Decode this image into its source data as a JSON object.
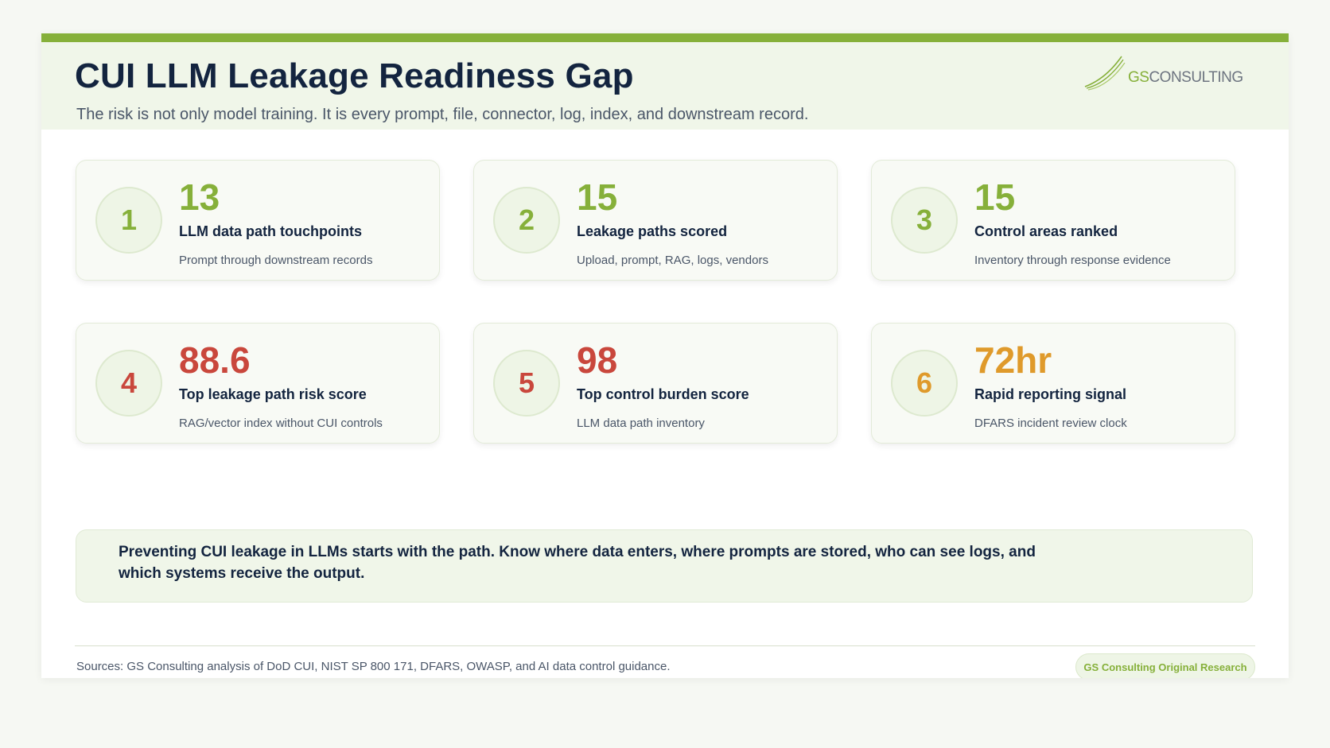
{
  "header": {
    "title": "CUI LLM Leakage Readiness Gap",
    "subtitle": "The risk is not only model training. It is every prompt, file, connector, log, index, and downstream record."
  },
  "logo": {
    "gs": "GS",
    "name": "CONSULTING"
  },
  "cards": [
    {
      "number": "1",
      "value": "13",
      "label": "LLM data path touchpoints",
      "desc": "Prompt through downstream records",
      "color": "#86b03a"
    },
    {
      "number": "2",
      "value": "15",
      "label": "Leakage paths scored",
      "desc": "Upload, prompt, RAG, logs, vendors",
      "color": "#86b03a"
    },
    {
      "number": "3",
      "value": "15",
      "label": "Control areas ranked",
      "desc": "Inventory through response evidence",
      "color": "#86b03a"
    },
    {
      "number": "4",
      "value": "88.6",
      "label": "Top leakage path risk score",
      "desc": "RAG/vector index without CUI controls",
      "color": "#c9473c"
    },
    {
      "number": "5",
      "value": "98",
      "label": "Top control burden score",
      "desc": "LLM data path inventory",
      "color": "#c9473c"
    },
    {
      "number": "6",
      "value": "72hr",
      "label": "Rapid reporting signal",
      "desc": "DFARS incident review clock",
      "color": "#df9a2b"
    }
  ],
  "callout": "Preventing CUI leakage in LLMs starts with the path. Know where data enters, where prompts are stored, who can see logs, and which systems receive the output.",
  "footer": {
    "sources": "Sources: GS Consulting analysis of DoD CUI, NIST SP 800 171, DFARS, OWASP, and AI data control guidance.",
    "badge": "GS Consulting Original Research"
  }
}
